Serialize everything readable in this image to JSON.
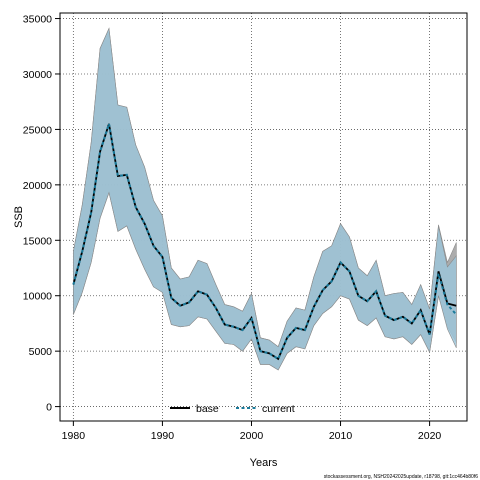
{
  "chart_data": {
    "type": "line",
    "xlabel": "Years",
    "ylabel": "SSB",
    "xlim": [
      1978.5,
      2024.2
    ],
    "ylim": [
      -1300,
      35500
    ],
    "xticks": [
      1980,
      1990,
      2000,
      2010,
      2020
    ],
    "yticks": [
      0,
      5000,
      10000,
      15000,
      20000,
      25000,
      30000,
      35000
    ],
    "grid": true,
    "legend_position": "bottom-center",
    "x": [
      1980,
      1981,
      1982,
      1983,
      1984,
      1985,
      1986,
      1987,
      1988,
      1989,
      1990,
      1991,
      1992,
      1993,
      1994,
      1995,
      1996,
      1997,
      1998,
      1999,
      2000,
      2001,
      2002,
      2003,
      2004,
      2005,
      2006,
      2007,
      2008,
      2009,
      2010,
      2011,
      2012,
      2013,
      2014,
      2015,
      2016,
      2017,
      2018,
      2019,
      2020,
      2021,
      2022,
      2023
    ],
    "series": [
      {
        "name": "base",
        "color": "#000000",
        "style": "solid",
        "values": [
          11000,
          14000,
          17500,
          23000,
          25500,
          20800,
          20900,
          18000,
          16500,
          14500,
          13500,
          9800,
          9100,
          9400,
          10400,
          10100,
          8900,
          7400,
          7200,
          6900,
          8000,
          5000,
          4800,
          4300,
          6200,
          7100,
          6900,
          9000,
          10500,
          11300,
          13000,
          12200,
          10000,
          9500,
          10400,
          8200,
          7800,
          8100,
          7500,
          8700,
          6500,
          12200,
          9300,
          9100
        ]
      },
      {
        "name": "current",
        "color": "#1a7a9a",
        "style": "dashed",
        "values": [
          11000,
          14000,
          17500,
          23000,
          25500,
          20800,
          20900,
          18000,
          16500,
          14500,
          13500,
          9800,
          9100,
          9400,
          10400,
          10100,
          8900,
          7400,
          7200,
          6900,
          8000,
          5000,
          4800,
          4300,
          6200,
          7100,
          6900,
          9000,
          10500,
          11300,
          13000,
          12200,
          10000,
          9500,
          10400,
          8200,
          7800,
          8100,
          7500,
          8700,
          6500,
          12000,
          9200,
          8300
        ]
      }
    ],
    "bands": [
      {
        "of": "base",
        "color": "#9e9e9e",
        "lower": [
          8300,
          10300,
          13000,
          17000,
          19300,
          15800,
          16300,
          14200,
          12400,
          10800,
          10300,
          7400,
          7200,
          7300,
          8100,
          7900,
          6800,
          5700,
          5600,
          5000,
          6100,
          3800,
          3800,
          3300,
          4800,
          5400,
          5200,
          7300,
          8400,
          9000,
          10000,
          9700,
          7800,
          7300,
          8000,
          6300,
          6100,
          6300,
          5600,
          6500,
          4900,
          10000,
          7200,
          5800
        ],
        "upper": [
          14000,
          18200,
          23800,
          32300,
          34100,
          27200,
          27000,
          23600,
          21600,
          18600,
          17200,
          12500,
          11500,
          11700,
          13200,
          12900,
          11000,
          9200,
          9000,
          8600,
          10200,
          6200,
          6000,
          5400,
          7700,
          8900,
          8700,
          11700,
          14000,
          14500,
          16500,
          15300,
          12500,
          11800,
          13200,
          10000,
          10200,
          10300,
          9200,
          11000,
          8800,
          16400,
          13000,
          14800
        ]
      },
      {
        "of": "current",
        "color": "#9cc4d8",
        "lower": [
          8300,
          10300,
          13000,
          17000,
          19300,
          15800,
          16300,
          14200,
          12400,
          10800,
          10300,
          7400,
          7200,
          7300,
          8100,
          7900,
          6800,
          5700,
          5600,
          5000,
          6100,
          3800,
          3800,
          3300,
          4800,
          5400,
          5200,
          7300,
          8400,
          9000,
          10000,
          9700,
          7800,
          7300,
          8000,
          6300,
          6100,
          6300,
          5600,
          6500,
          4900,
          10000,
          7000,
          5300
        ],
        "upper": [
          14000,
          18200,
          23800,
          32300,
          34100,
          27200,
          27000,
          23600,
          21600,
          18600,
          17200,
          12500,
          11500,
          11700,
          13200,
          12900,
          11000,
          9200,
          9000,
          8600,
          10200,
          6200,
          6000,
          5400,
          7700,
          8900,
          8700,
          11700,
          14000,
          14500,
          16500,
          15300,
          12500,
          11800,
          13200,
          10000,
          10200,
          10300,
          9200,
          11000,
          8800,
          16300,
          12600,
          13600
        ]
      }
    ],
    "legend": [
      {
        "label": "base",
        "style": "solid",
        "color": "#000000"
      },
      {
        "label": "current",
        "style": "dashed",
        "color": "#1a7a9a"
      }
    ]
  },
  "footnote": "stockassessment.org, NSH20242025update, r18798, git:1cc464b80f6"
}
